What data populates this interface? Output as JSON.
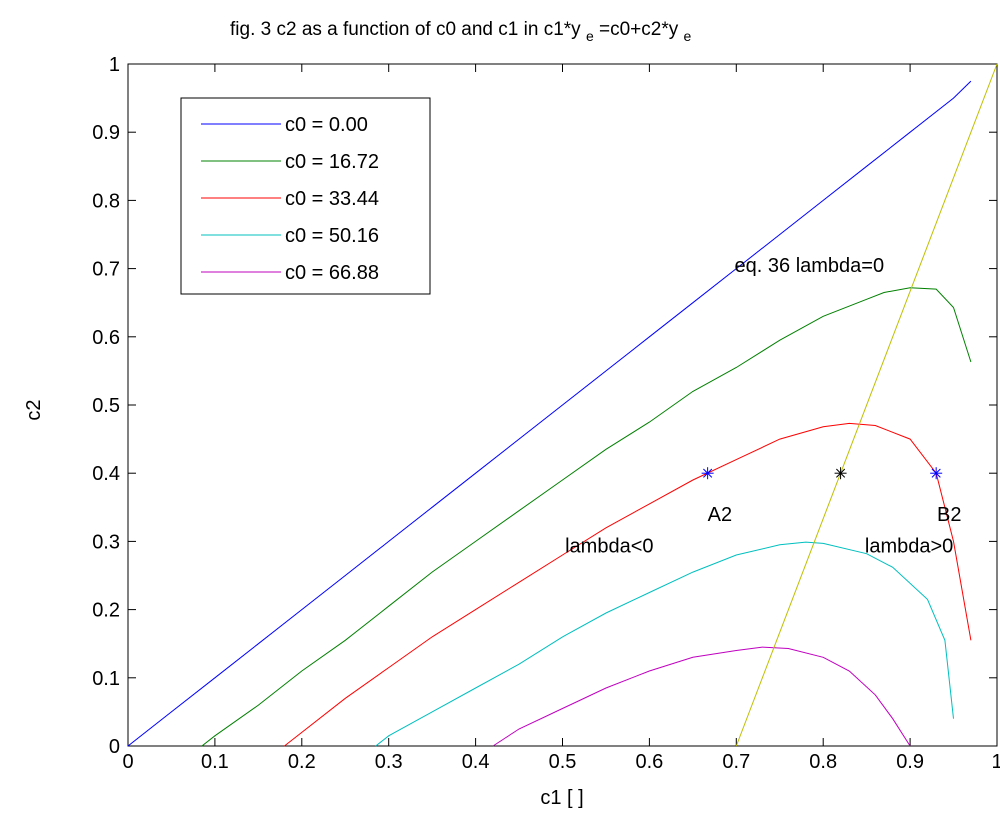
{
  "chart_data": {
    "type": "line",
    "title": "fig. 3  c2 as a function of c0 and c1 in c1*y",
    "title_sub1": "e",
    "title_mid": "=c0+c2*y",
    "title_sub2": "e",
    "xlabel": "c1 [ ]",
    "ylabel": "c2",
    "xlim": [
      0,
      1
    ],
    "ylim": [
      0,
      1
    ],
    "xticks": [
      "0",
      "0.1",
      "0.2",
      "0.3",
      "0.4",
      "0.5",
      "0.6",
      "0.7",
      "0.8",
      "0.9",
      "1"
    ],
    "yticks": [
      "0",
      "0.1",
      "0.2",
      "0.3",
      "0.4",
      "0.5",
      "0.6",
      "0.7",
      "0.8",
      "0.9",
      "1"
    ],
    "grid": false,
    "legend_position": "top-left",
    "series": [
      {
        "name": "c0 =  0.00",
        "color": "#0000ff",
        "x": [
          0.0,
          0.05,
          0.1,
          0.15,
          0.2,
          0.25,
          0.3,
          0.35,
          0.4,
          0.45,
          0.5,
          0.55,
          0.6,
          0.65,
          0.7,
          0.75,
          0.8,
          0.85,
          0.9,
          0.95,
          0.97
        ],
        "y": [
          0.0,
          0.05,
          0.1,
          0.15,
          0.2,
          0.25,
          0.3,
          0.35,
          0.4,
          0.45,
          0.5,
          0.55,
          0.6,
          0.65,
          0.7,
          0.75,
          0.8,
          0.85,
          0.9,
          0.95,
          0.975
        ]
      },
      {
        "name": "c0 =  16.72",
        "color": "#008000",
        "x": [
          0.085,
          0.1,
          0.15,
          0.2,
          0.25,
          0.3,
          0.35,
          0.4,
          0.45,
          0.5,
          0.55,
          0.6,
          0.65,
          0.7,
          0.75,
          0.8,
          0.85,
          0.87,
          0.9,
          0.93,
          0.95,
          0.97
        ],
        "y": [
          0.0,
          0.015,
          0.06,
          0.11,
          0.155,
          0.205,
          0.255,
          0.3,
          0.345,
          0.39,
          0.435,
          0.475,
          0.52,
          0.555,
          0.595,
          0.63,
          0.655,
          0.665,
          0.672,
          0.67,
          0.643,
          0.563
        ]
      },
      {
        "name": "c0 =  33.44",
        "color": "#ff0000",
        "x": [
          0.18,
          0.2,
          0.25,
          0.3,
          0.35,
          0.4,
          0.45,
          0.5,
          0.55,
          0.6,
          0.65,
          0.7,
          0.75,
          0.8,
          0.83,
          0.86,
          0.9,
          0.93,
          0.95,
          0.97
        ],
        "y": [
          0.0,
          0.02,
          0.07,
          0.115,
          0.16,
          0.2,
          0.24,
          0.28,
          0.32,
          0.355,
          0.39,
          0.42,
          0.45,
          0.468,
          0.473,
          0.47,
          0.45,
          0.4,
          0.3,
          0.155
        ]
      },
      {
        "name": "c0 =  50.16",
        "color": "#00bfbf",
        "x": [
          0.285,
          0.3,
          0.35,
          0.4,
          0.45,
          0.5,
          0.55,
          0.6,
          0.65,
          0.7,
          0.75,
          0.78,
          0.8,
          0.85,
          0.88,
          0.92,
          0.94,
          0.95
        ],
        "y": [
          0.0,
          0.015,
          0.05,
          0.085,
          0.12,
          0.16,
          0.195,
          0.225,
          0.255,
          0.28,
          0.295,
          0.299,
          0.297,
          0.282,
          0.262,
          0.215,
          0.155,
          0.04
        ]
      },
      {
        "name": "c0 =  66.88",
        "color": "#bf00bf",
        "x": [
          0.42,
          0.45,
          0.5,
          0.55,
          0.6,
          0.65,
          0.7,
          0.73,
          0.76,
          0.8,
          0.83,
          0.86,
          0.88,
          0.9
        ],
        "y": [
          0.0,
          0.025,
          0.055,
          0.085,
          0.11,
          0.13,
          0.14,
          0.145,
          0.143,
          0.13,
          0.11,
          0.075,
          0.04,
          0.0
        ]
      }
    ],
    "line_eq36": {
      "color": "#bfbf00",
      "x": [
        0.7,
        1.0
      ],
      "y": [
        0.0,
        1.0
      ]
    },
    "markers": [
      {
        "x": 0.667,
        "y": 0.4,
        "color": "#0000ff"
      },
      {
        "x": 0.82,
        "y": 0.4,
        "color": "#000000"
      },
      {
        "x": 0.93,
        "y": 0.4,
        "color": "#0000ff"
      }
    ],
    "annotations": [
      {
        "text": "eq. 36 lambda=0",
        "x": 0.698,
        "y": 0.695
      },
      {
        "text": "A2",
        "x": 0.667,
        "y": 0.33
      },
      {
        "text": "B2",
        "x": 0.931,
        "y": 0.33
      },
      {
        "text": "lambda<0",
        "x": 0.503,
        "y": 0.284
      },
      {
        "text": "lambda>0",
        "x": 0.848,
        "y": 0.284
      }
    ]
  }
}
